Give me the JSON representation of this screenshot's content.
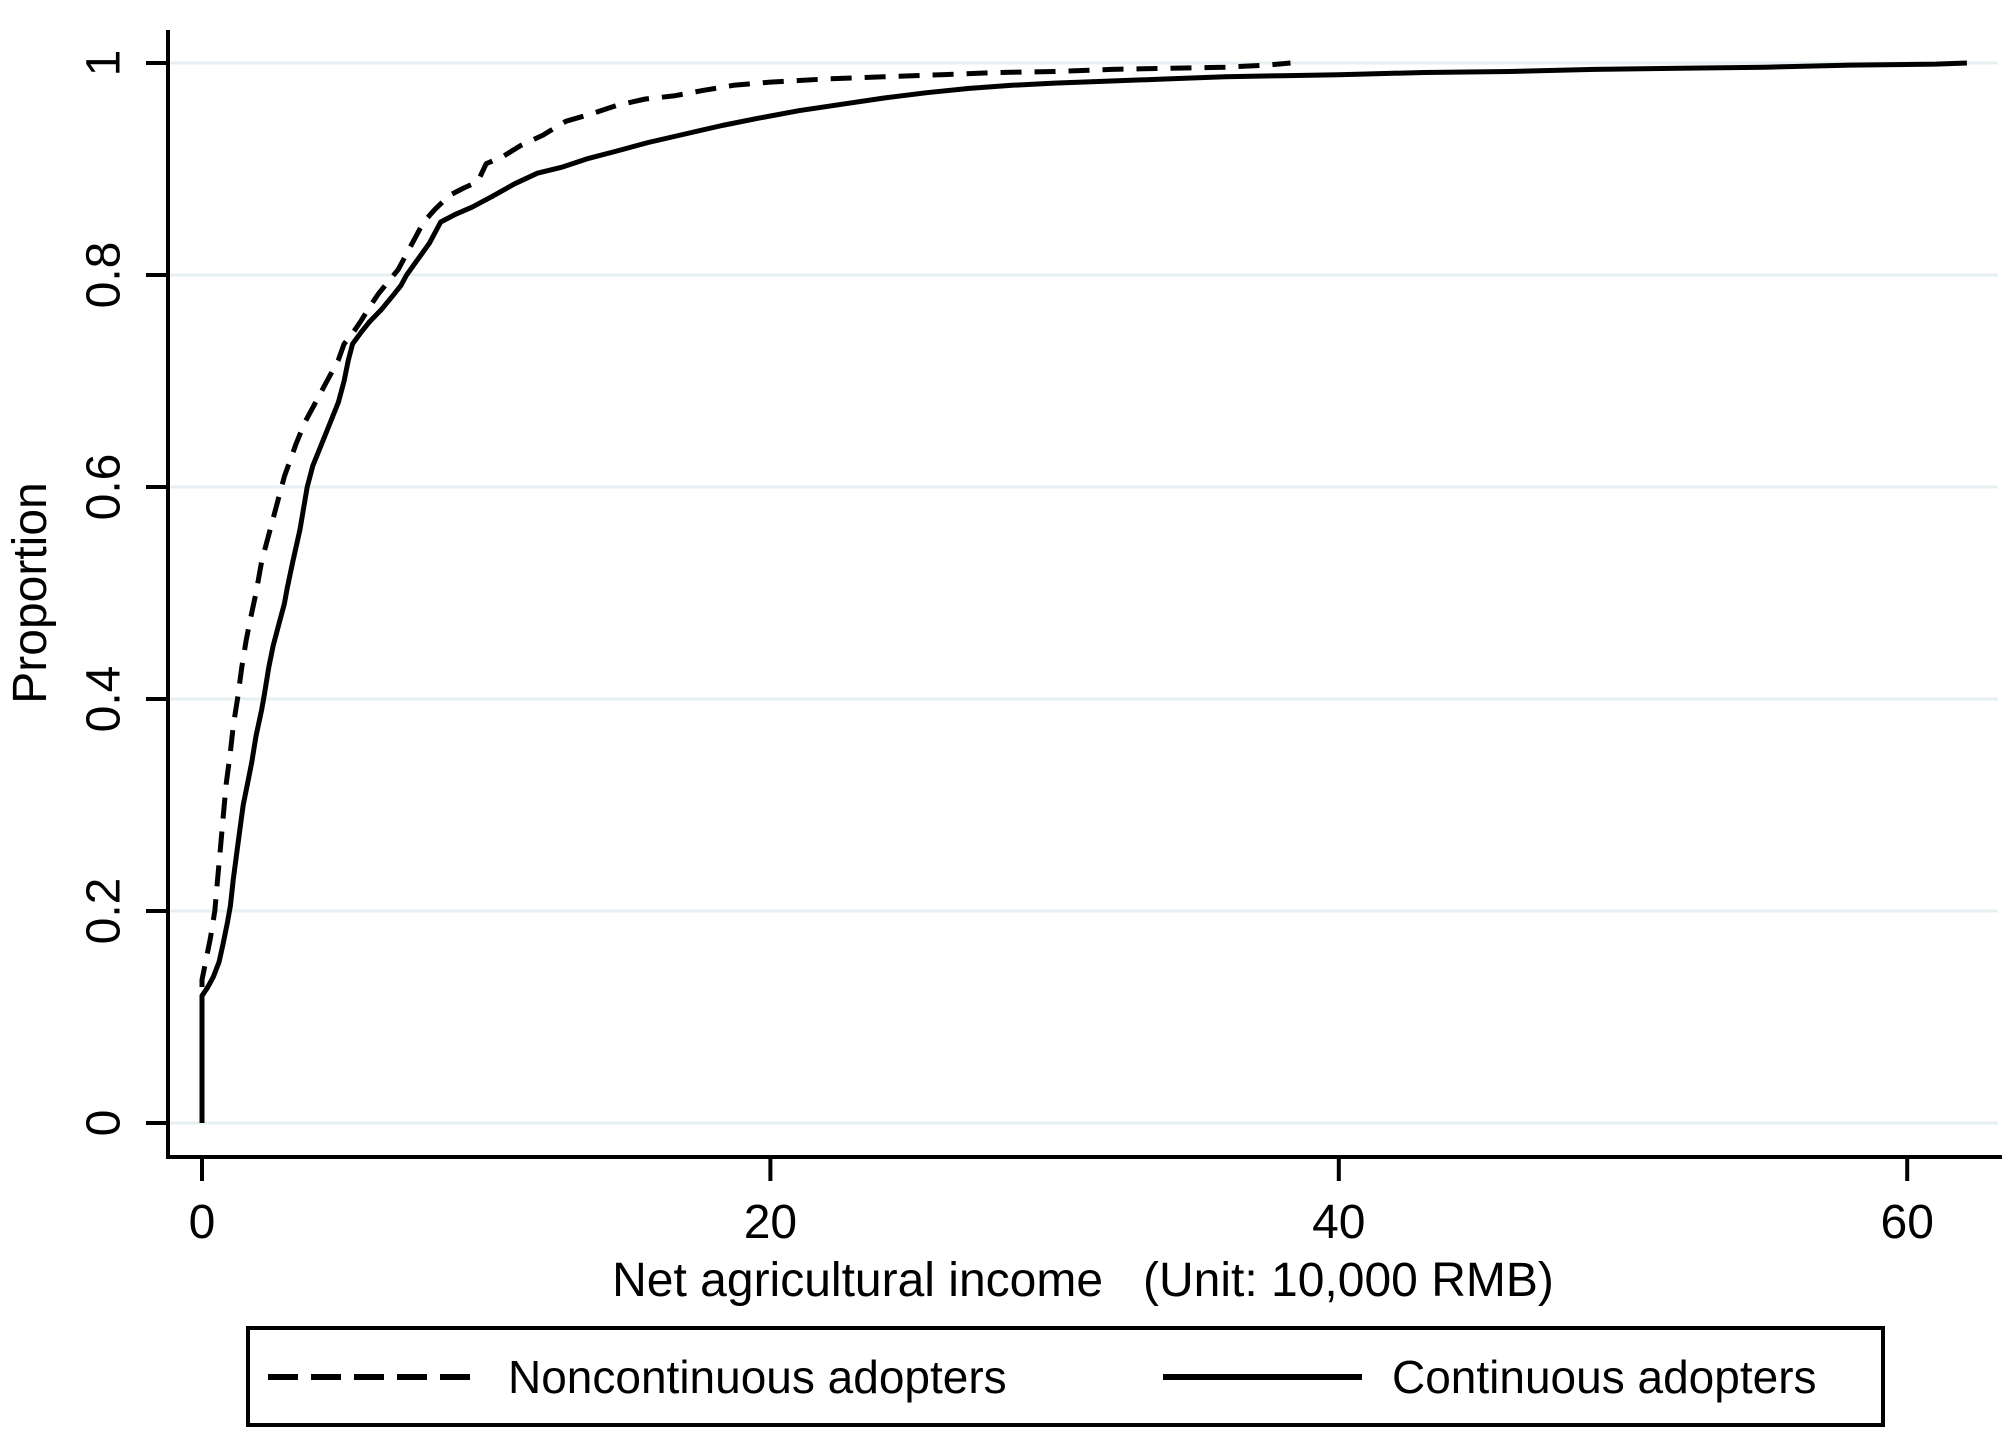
{
  "chart_data": {
    "type": "line",
    "title": "",
    "xlabel": "Net agricultural income   (Unit: 10,000 RMB)",
    "ylabel": "Proportion",
    "xticks": [
      0,
      20,
      40,
      60
    ],
    "yticks": [
      0,
      0.2,
      0.4,
      0.6,
      0.8,
      1
    ],
    "xlim": [
      -1.2,
      63.3
    ],
    "ylim": [
      -0.03,
      1.03
    ],
    "grid": "horizontal-only",
    "legend_position": "bottom-boxed",
    "series": [
      {
        "name": "Noncontinuous adopters",
        "style": "dashed",
        "color": "#000000",
        "points": [
          [
            0,
            0
          ],
          [
            0,
            0.135
          ],
          [
            0.15,
            0.155
          ],
          [
            0.3,
            0.175
          ],
          [
            0.45,
            0.2
          ],
          [
            0.55,
            0.23
          ],
          [
            0.65,
            0.26
          ],
          [
            0.75,
            0.29
          ],
          [
            0.85,
            0.32
          ],
          [
            1,
            0.35
          ],
          [
            1.1,
            0.375
          ],
          [
            1.25,
            0.4
          ],
          [
            1.4,
            0.43
          ],
          [
            1.55,
            0.455
          ],
          [
            1.7,
            0.475
          ],
          [
            1.9,
            0.5
          ],
          [
            2.1,
            0.53
          ],
          [
            2.4,
            0.56
          ],
          [
            2.7,
            0.59
          ],
          [
            2.9,
            0.61
          ],
          [
            3.1,
            0.625
          ],
          [
            3.3,
            0.64
          ],
          [
            3.6,
            0.66
          ],
          [
            4,
            0.68
          ],
          [
            4.4,
            0.7
          ],
          [
            4.8,
            0.72
          ],
          [
            5,
            0.735
          ],
          [
            5.3,
            0.745
          ],
          [
            5.6,
            0.757
          ],
          [
            5.9,
            0.77
          ],
          [
            6.2,
            0.782
          ],
          [
            6.5,
            0.792
          ],
          [
            6.9,
            0.805
          ],
          [
            7.2,
            0.82
          ],
          [
            7.5,
            0.835
          ],
          [
            7.8,
            0.85
          ],
          [
            8.2,
            0.862
          ],
          [
            8.7,
            0.875
          ],
          [
            9.2,
            0.882
          ],
          [
            9.7,
            0.888
          ],
          [
            10,
            0.905
          ],
          [
            10.6,
            0.912
          ],
          [
            11.2,
            0.922
          ],
          [
            12,
            0.932
          ],
          [
            12.8,
            0.945
          ],
          [
            13.7,
            0.952
          ],
          [
            14.6,
            0.96
          ],
          [
            15.6,
            0.966
          ],
          [
            16.6,
            0.969
          ],
          [
            17.6,
            0.974
          ],
          [
            18.7,
            0.979
          ],
          [
            20,
            0.982
          ],
          [
            22,
            0.985
          ],
          [
            24,
            0.987
          ],
          [
            26,
            0.989
          ],
          [
            28,
            0.991
          ],
          [
            30,
            0.992
          ],
          [
            32,
            0.994
          ],
          [
            34,
            0.995
          ],
          [
            36,
            0.996
          ],
          [
            37.5,
            0.998
          ],
          [
            38.3,
            1
          ]
        ]
      },
      {
        "name": "Continuous adopters",
        "style": "solid",
        "color": "#000000",
        "points": [
          [
            0,
            0
          ],
          [
            0,
            0.12
          ],
          [
            0.2,
            0.128
          ],
          [
            0.4,
            0.138
          ],
          [
            0.6,
            0.152
          ],
          [
            0.75,
            0.17
          ],
          [
            0.9,
            0.19
          ],
          [
            1,
            0.205
          ],
          [
            1.1,
            0.23
          ],
          [
            1.2,
            0.25
          ],
          [
            1.3,
            0.27
          ],
          [
            1.45,
            0.3
          ],
          [
            1.6,
            0.32
          ],
          [
            1.75,
            0.34
          ],
          [
            1.9,
            0.365
          ],
          [
            2.1,
            0.39
          ],
          [
            2.2,
            0.405
          ],
          [
            2.35,
            0.43
          ],
          [
            2.5,
            0.45
          ],
          [
            2.7,
            0.47
          ],
          [
            2.9,
            0.49
          ],
          [
            3,
            0.505
          ],
          [
            3.2,
            0.53
          ],
          [
            3.45,
            0.56
          ],
          [
            3.7,
            0.6
          ],
          [
            3.9,
            0.62
          ],
          [
            4.2,
            0.64
          ],
          [
            4.5,
            0.66
          ],
          [
            4.8,
            0.68
          ],
          [
            5,
            0.7
          ],
          [
            5.15,
            0.72
          ],
          [
            5.3,
            0.735
          ],
          [
            5.6,
            0.746
          ],
          [
            5.9,
            0.756
          ],
          [
            6.3,
            0.767
          ],
          [
            6.7,
            0.78
          ],
          [
            7,
            0.79
          ],
          [
            7.2,
            0.8
          ],
          [
            7.6,
            0.815
          ],
          [
            8,
            0.83
          ],
          [
            8.4,
            0.85
          ],
          [
            8.9,
            0.857
          ],
          [
            9.5,
            0.864
          ],
          [
            10.2,
            0.874
          ],
          [
            11,
            0.886
          ],
          [
            11.8,
            0.896
          ],
          [
            12.7,
            0.902
          ],
          [
            13.6,
            0.91
          ],
          [
            14.6,
            0.917
          ],
          [
            15.7,
            0.925
          ],
          [
            17,
            0.933
          ],
          [
            18.3,
            0.941
          ],
          [
            19.6,
            0.948
          ],
          [
            21,
            0.955
          ],
          [
            22.5,
            0.961
          ],
          [
            24,
            0.967
          ],
          [
            25.5,
            0.972
          ],
          [
            27,
            0.976
          ],
          [
            28.5,
            0.979
          ],
          [
            30,
            0.981
          ],
          [
            32,
            0.983
          ],
          [
            34,
            0.985
          ],
          [
            36,
            0.987
          ],
          [
            38,
            0.988
          ],
          [
            40,
            0.989
          ],
          [
            43,
            0.991
          ],
          [
            46,
            0.992
          ],
          [
            49,
            0.994
          ],
          [
            52,
            0.995
          ],
          [
            55,
            0.996
          ],
          [
            58,
            0.998
          ],
          [
            61,
            0.999
          ],
          [
            62.1,
            1
          ]
        ]
      }
    ]
  },
  "legend": {
    "items": [
      {
        "label": "Noncontinuous adopters",
        "line_style": "dashed"
      },
      {
        "label": "Continuous adopters",
        "line_style": "solid"
      }
    ]
  },
  "colors": {
    "background": "#ffffff",
    "grid": "#e6eff2",
    "axis": "#000000",
    "text": "#000000",
    "curve": "#000000"
  }
}
